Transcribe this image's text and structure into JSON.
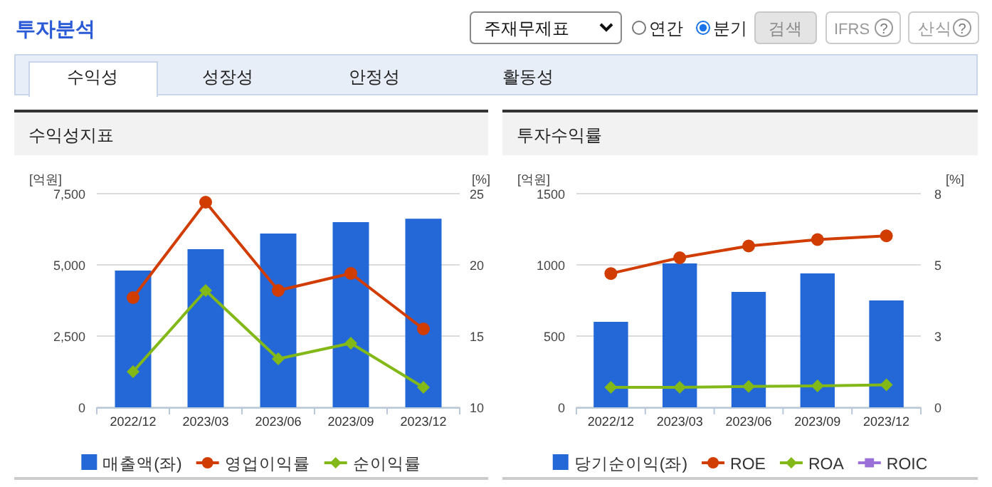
{
  "chart_data": [
    {
      "type": "other",
      "title": "투자분석",
      "annotations": [
        "주재무제표",
        "연간",
        "분기",
        "검색",
        "IFRS",
        "?",
        "산식",
        "?",
        "수익성",
        "성장성",
        "안정성",
        "활동성"
      ]
    },
    {
      "type": "bar",
      "title": "수익성지표",
      "ylabel": "[억원]",
      "y2label": "[%]",
      "categories": [
        "2022/12",
        "2023/03",
        "2023/06",
        "2023/09",
        "2023/12"
      ],
      "ylim": [
        0,
        7500
      ],
      "yticks": [
        0,
        {
          "value": 2500,
          "label": "2,500"
        },
        {
          "value": 5000,
          "label": "5,000"
        },
        {
          "value": 7500,
          "label": "7,500"
        }
      ],
      "y2lim": [
        10,
        25
      ],
      "y2ticks": [
        10,
        15,
        20,
        25
      ],
      "grid": "y",
      "legend": "bottom",
      "series": [
        {
          "name": "매출액(좌)",
          "type": "bar",
          "color": "#2468d8",
          "values": [
            4800,
            5550,
            6100,
            6500,
            6620
          ]
        },
        {
          "name": "영업이익률",
          "type": "line",
          "axis": "y2",
          "marker": "circle",
          "color": "#d13c00",
          "values": [
            17.7,
            24.4,
            18.2,
            19.4,
            15.5
          ]
        },
        {
          "name": "순이익률",
          "type": "line",
          "axis": "y2",
          "marker": "diamond",
          "color": "#82b817",
          "values": [
            12.5,
            18.2,
            13.4,
            14.5,
            11.4
          ]
        }
      ]
    },
    {
      "type": "bar",
      "title": "투자수익률",
      "ylabel": "[억원]",
      "y2label": "[%]",
      "categories": [
        "2022/12",
        "2023/03",
        "2023/06",
        "2023/09",
        "2023/12"
      ],
      "ylim": [
        0,
        1500
      ],
      "yticks": [
        0,
        500,
        1000,
        1500
      ],
      "y2lim": [
        0,
        8
      ],
      "y2ticks": [
        0,
        {
          "value": 2.667,
          "label": "3"
        },
        {
          "value": 5.333,
          "label": "5"
        },
        8
      ],
      "grid": "y",
      "legend": "bottom",
      "series": [
        {
          "name": "당기순이익(좌)",
          "type": "bar",
          "color": "#2468d8",
          "values": [
            600,
            1010,
            810,
            940,
            750
          ]
        },
        {
          "name": "ROE",
          "type": "line",
          "axis": "y2",
          "marker": "circle",
          "color": "#d13c00",
          "values": [
            5.01,
            5.6,
            6.04,
            6.28,
            6.42
          ]
        },
        {
          "name": "ROA",
          "type": "line",
          "axis": "y2",
          "marker": "diamond",
          "color": "#82b817",
          "values": [
            0.75,
            0.75,
            0.78,
            0.8,
            0.84
          ]
        },
        {
          "name": "ROIC",
          "type": "line",
          "axis": "y2",
          "marker": "square",
          "color": "#9b6fd8",
          "values": [
            null,
            null,
            null,
            null,
            null
          ]
        }
      ]
    }
  ]
}
